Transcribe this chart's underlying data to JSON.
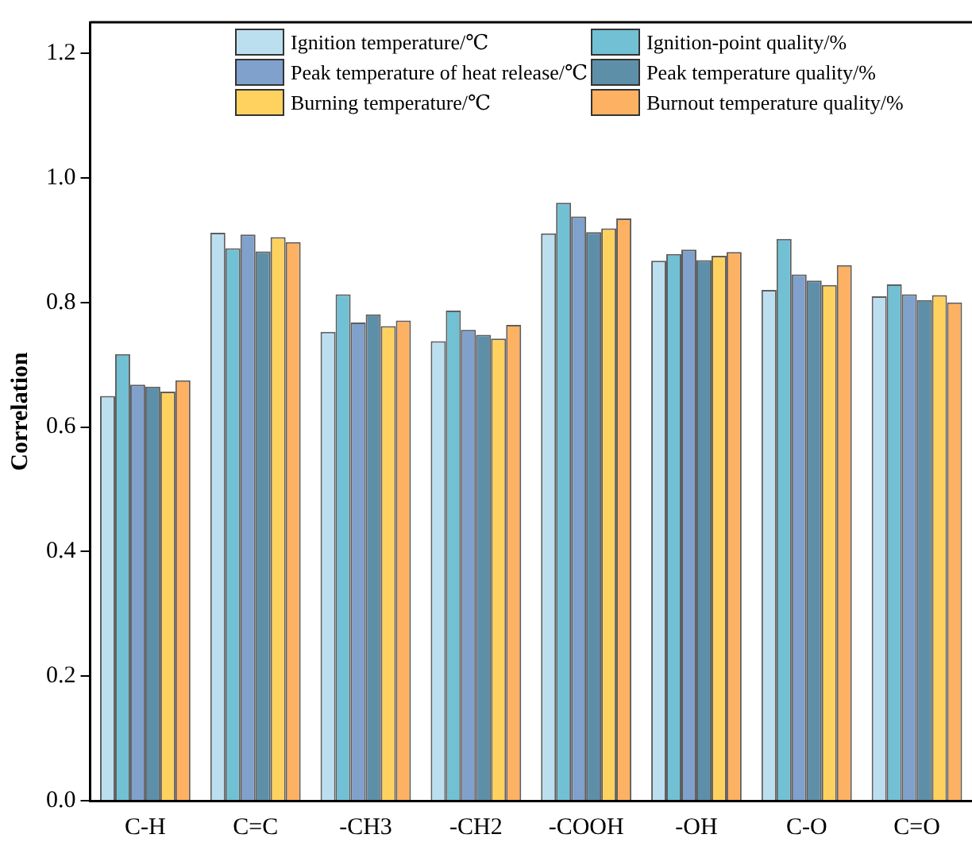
{
  "chart_data": {
    "type": "bar",
    "ylabel": "Correlation",
    "categories": [
      "C-H",
      "C=C",
      "-CH3",
      "-CH2",
      "-COOH",
      "-OH",
      "C-O",
      "C=O"
    ],
    "series": [
      {
        "name": "Ignition temperature/℃",
        "color": "#bcdff0",
        "values": [
          0.65,
          0.912,
          0.753,
          0.738,
          0.911,
          0.867,
          0.82,
          0.81
        ]
      },
      {
        "name": "Ignition-point quality/%",
        "color": "#72c0d4",
        "values": [
          0.717,
          0.887,
          0.813,
          0.787,
          0.96,
          0.878,
          0.902,
          0.829
        ]
      },
      {
        "name": "Peak temperature of heat release/℃",
        "color": "#7fa1cc",
        "values": [
          0.668,
          0.909,
          0.768,
          0.756,
          0.938,
          0.885,
          0.845,
          0.813
        ]
      },
      {
        "name": "Peak temperature quality/%",
        "color": "#5e8fa8",
        "values": [
          0.665,
          0.882,
          0.781,
          0.748,
          0.913,
          0.868,
          0.835,
          0.804
        ]
      },
      {
        "name": "Burning temperature/℃",
        "color": "#ffd260",
        "values": [
          0.657,
          0.905,
          0.762,
          0.742,
          0.919,
          0.875,
          0.828,
          0.812
        ]
      },
      {
        "name": "Burnout temperature quality/%",
        "color": "#fdb162",
        "values": [
          0.675,
          0.897,
          0.771,
          0.764,
          0.935,
          0.881,
          0.86,
          0.8
        ]
      }
    ],
    "ylim": [
      0,
      1.25
    ],
    "yticks": [
      {
        "value": 0,
        "label": "0.0"
      },
      0.2,
      0.4,
      0.6,
      0.8,
      {
        "value": 1,
        "label": "1.0"
      },
      1.2
    ],
    "grid": false,
    "legend": "top"
  }
}
